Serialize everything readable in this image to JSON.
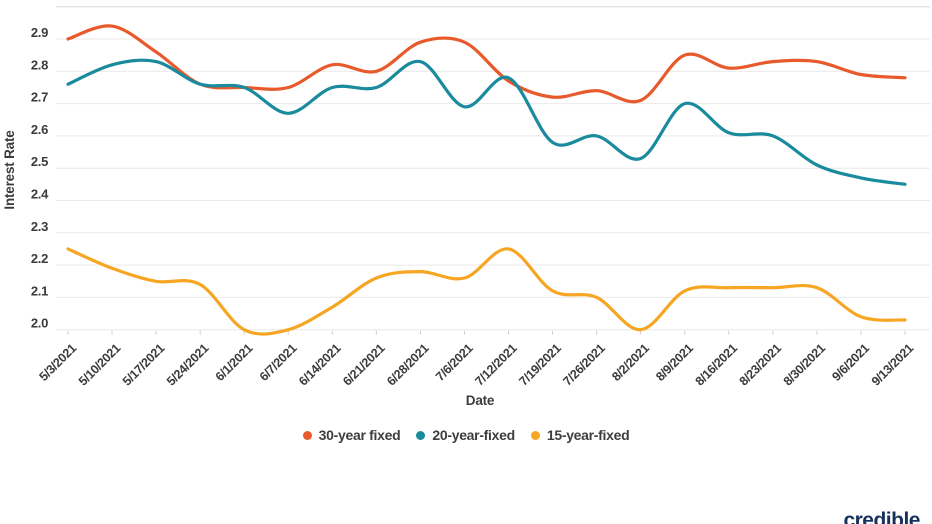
{
  "chart_data": {
    "type": "line",
    "title": "",
    "xlabel": "Date",
    "ylabel": "Interest Rate",
    "x": [
      "5/3/2021",
      "5/10/2021",
      "5/17/2021",
      "5/24/2021",
      "6/1/2021",
      "6/7/2021",
      "6/14/2021",
      "6/21/2021",
      "6/28/2021",
      "7/6/2021",
      "7/12/2021",
      "7/19/2021",
      "7/26/2021",
      "8/2/2021",
      "8/9/2021",
      "8/16/2021",
      "8/23/2021",
      "8/30/2021",
      "9/6/2021",
      "9/13/2021"
    ],
    "series": [
      {
        "name": "30-year fixed",
        "color": "#E8592B",
        "values": [
          2.9,
          2.94,
          2.86,
          2.76,
          2.75,
          2.75,
          2.82,
          2.8,
          2.89,
          2.89,
          2.77,
          2.72,
          2.74,
          2.71,
          2.85,
          2.81,
          2.83,
          2.83,
          2.79,
          2.78
        ]
      },
      {
        "name": "20-year-fixed",
        "color": "#1A8A9D",
        "values": [
          2.76,
          2.82,
          2.83,
          2.76,
          2.75,
          2.67,
          2.75,
          2.75,
          2.83,
          2.69,
          2.78,
          2.58,
          2.6,
          2.53,
          2.7,
          2.61,
          2.6,
          2.51,
          2.47,
          2.45
        ]
      },
      {
        "name": "15-year-fixed",
        "color": "#F6A623",
        "values": [
          2.25,
          2.19,
          2.15,
          2.14,
          2.0,
          2.0,
          2.07,
          2.16,
          2.18,
          2.16,
          2.25,
          2.12,
          2.1,
          2.0,
          2.12,
          2.13,
          2.13,
          2.13,
          2.04,
          2.03
        ]
      }
    ],
    "ylim": [
      2.0,
      3.0
    ],
    "yticks": [
      "2.0",
      "2.1",
      "2.2",
      "2.3",
      "2.4",
      "2.5",
      "2.6",
      "2.7",
      "2.8",
      "2.9"
    ],
    "top_gridline": 3.0,
    "grid": "horizontal",
    "legend_position": "bottom-center"
  },
  "branding": {
    "logo_text": "credible",
    "logo_color": "#16325C"
  }
}
